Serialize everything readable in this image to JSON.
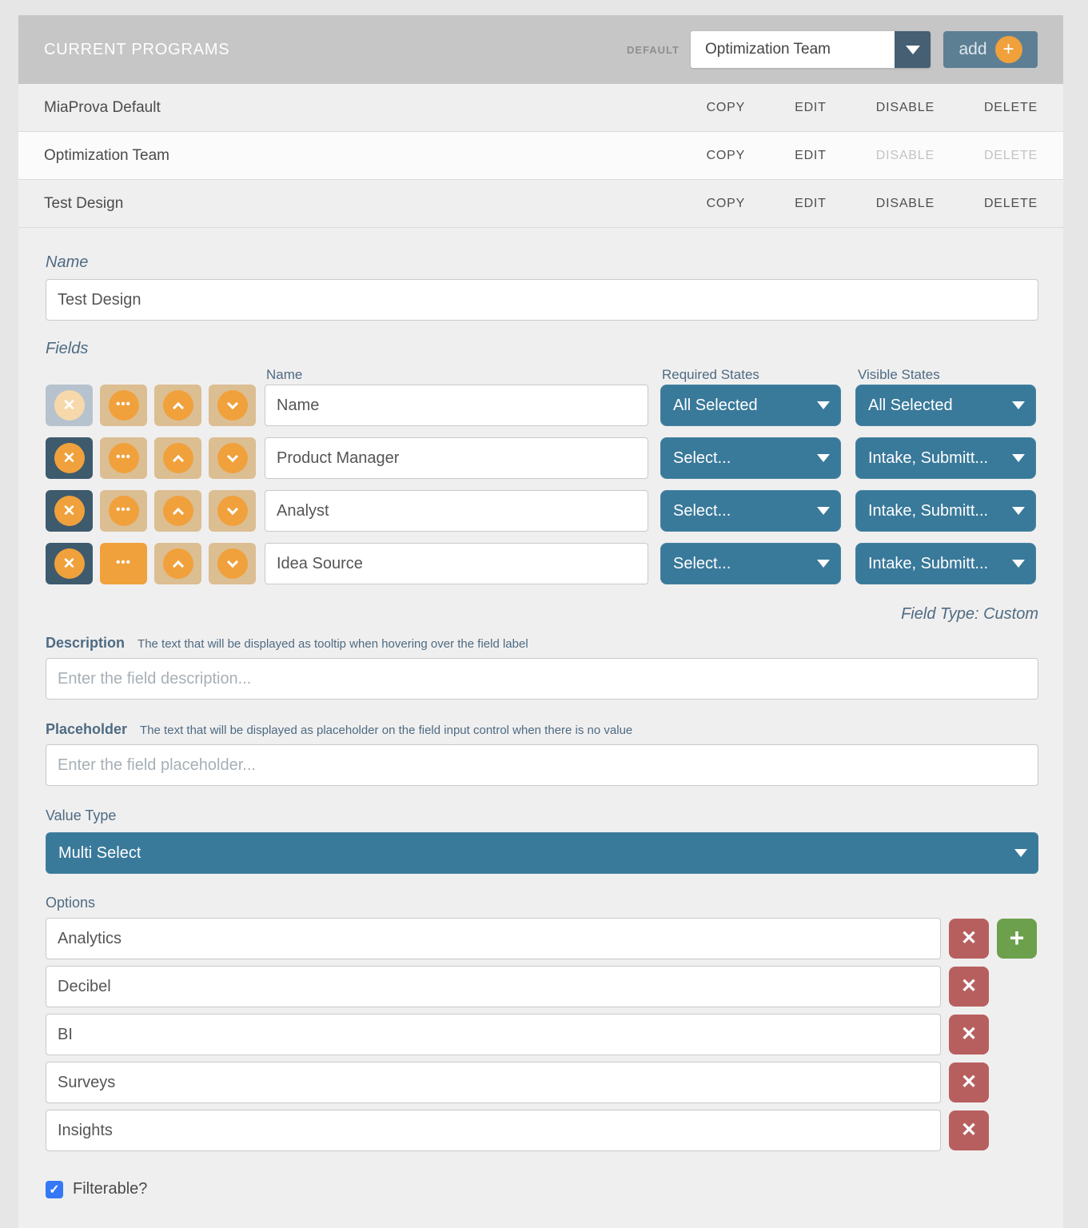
{
  "header": {
    "title": "CURRENT PROGRAMS",
    "default_label": "DEFAULT",
    "default_select_value": "Optimization Team",
    "add_label": "add"
  },
  "programs": {
    "action_labels": {
      "copy": "COPY",
      "edit": "EDIT",
      "disable": "DISABLE",
      "delete": "DELETE"
    },
    "rows": [
      {
        "name": "MiaProva Default"
      },
      {
        "name": "Optimization Team"
      },
      {
        "name": "Test Design"
      }
    ]
  },
  "form": {
    "name_label": "Name",
    "name_value": "Test Design",
    "fields_label": "Fields",
    "columns": {
      "name": "Name",
      "required": "Required States",
      "visible": "Visible States"
    },
    "rows": [
      {
        "name": "Name",
        "required": "All Selected",
        "visible": "All Selected"
      },
      {
        "name": "Product Manager",
        "required": "Select...",
        "visible": "Intake, Submitt..."
      },
      {
        "name": "Analyst",
        "required": "Select...",
        "visible": "Intake, Submitt..."
      },
      {
        "name": "Idea Source",
        "required": "Select...",
        "visible": "Intake, Submitt..."
      }
    ],
    "field_type_note": "Field Type: Custom",
    "description": {
      "label": "Description",
      "hint": "The text that will be displayed as tooltip when hovering over the field label",
      "placeholder": "Enter the field description..."
    },
    "placeholder": {
      "label": "Placeholder",
      "hint": "The text that will be displayed as placeholder on the field input control when there is no value",
      "placeholder": "Enter the field placeholder..."
    },
    "value_type": {
      "label": "Value Type",
      "value": "Multi Select"
    },
    "options": {
      "label": "Options",
      "items": [
        "Analytics",
        "Decibel",
        "BI",
        "Surveys",
        "Insights"
      ]
    },
    "filterable_label": "Filterable?"
  },
  "colors": {
    "topbar_bg": "#c6c6c6",
    "panel_bg": "#f0efef",
    "accent_orange": "#f0a13c",
    "accent_tan": "#dcbe93",
    "accent_dark_slate": "#3e5a6d",
    "accent_teal": "#39799a",
    "add_button": "#5d7f94",
    "delete_red": "#b75f5f",
    "add_green": "#6ca04d",
    "checkbox_blue": "#3478f6",
    "label_blue": "#4d6b83"
  }
}
